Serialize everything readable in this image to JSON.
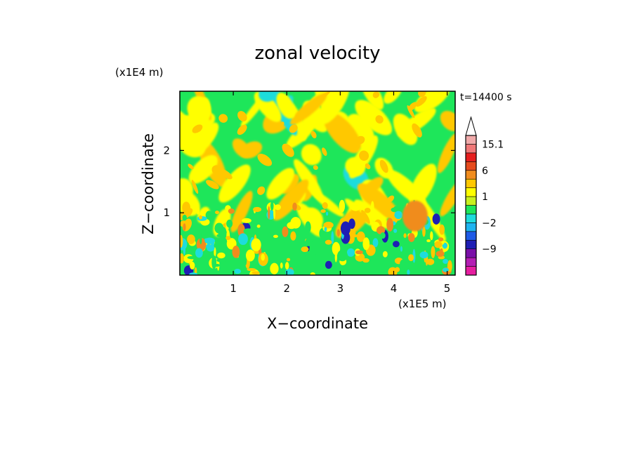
{
  "chart_data": {
    "type": "heatmap",
    "title": "zonal velocity",
    "xlabel": "X−coordinate",
    "ylabel": "Z−coordinate",
    "x_unit": "(x1E5 m)",
    "y_unit": "(x1E4 m)",
    "time_label": "t=14400 s",
    "xlim": [
      0,
      5.15
    ],
    "ylim": [
      0,
      2.95
    ],
    "x_ticks": [
      1,
      2,
      3,
      4,
      5
    ],
    "y_ticks": [
      1,
      2
    ],
    "colorbar": {
      "levels": [
        -15,
        -12,
        -9,
        -6,
        -3,
        -2,
        -1,
        0,
        1,
        2,
        3,
        6,
        9,
        12,
        15.1
      ],
      "labels": [
        {
          "text": "15.1",
          "value": 15.1
        },
        {
          "text": "6",
          "value": 6
        },
        {
          "text": "1",
          "value": 1
        },
        {
          "text": "−2",
          "value": -2
        },
        {
          "text": "−9",
          "value": -9
        }
      ],
      "colors": [
        "#e61ea0",
        "#b41eb4",
        "#7a0fa8",
        "#1e1eb4",
        "#1e5ae6",
        "#1eb4f0",
        "#1edcdc",
        "#1ee65a",
        "#c8f01e",
        "#ffff00",
        "#ffc800",
        "#f08c1e",
        "#e64b1e",
        "#e61e1e",
        "#f07878",
        "#f0aaaa"
      ]
    },
    "field_description_colors": {
      "background": "#1ee65a",
      "positive_low": "#ffff00",
      "positive_mid": "#ffc800",
      "positive_high": "#f08c1e",
      "negative_low": "#1edcdc",
      "negative_high": "#1e1eb4"
    }
  }
}
